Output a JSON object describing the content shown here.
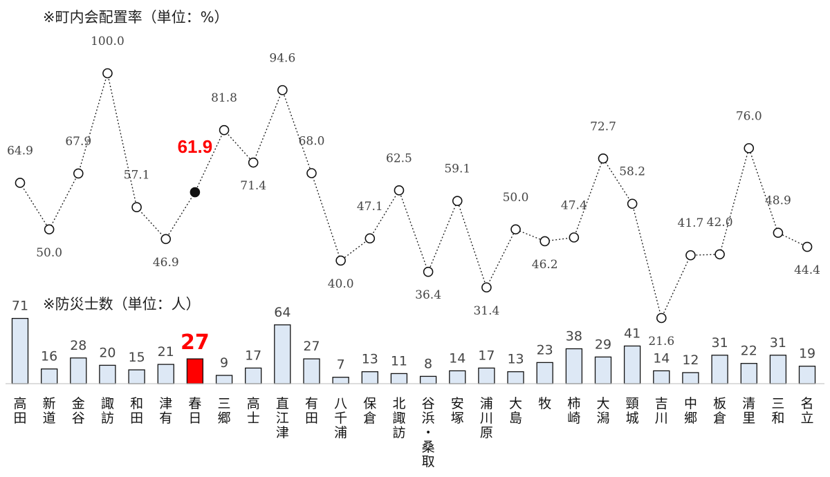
{
  "chart_data": [
    {
      "type": "line",
      "title": "※町内会配置率（単位：%）",
      "categories": [
        [
          "高",
          "田"
        ],
        [
          "新",
          "道"
        ],
        [
          "金",
          "谷"
        ],
        [
          "諏",
          "訪"
        ],
        [
          "和",
          "田"
        ],
        [
          "津",
          "有"
        ],
        [
          "春",
          "日"
        ],
        [
          "三",
          "郷"
        ],
        [
          "高",
          "士"
        ],
        [
          "直",
          "江",
          "津"
        ],
        [
          "有",
          "田"
        ],
        [
          "八",
          "千",
          "浦"
        ],
        [
          "保",
          "倉"
        ],
        [
          "北",
          "諏",
          "訪"
        ],
        [
          "谷",
          "浜",
          "・",
          "桑",
          "取"
        ],
        [
          "安",
          "塚"
        ],
        [
          "浦",
          "川",
          "原"
        ],
        [
          "大",
          "島"
        ],
        [
          "牧"
        ],
        [
          "柿",
          "崎"
        ],
        [
          "大",
          "潟"
        ],
        [
          "頸",
          "城"
        ],
        [
          "吉",
          "川"
        ],
        [
          "中",
          "郷"
        ],
        [
          "板",
          "倉"
        ],
        [
          "清",
          "里"
        ],
        [
          "三",
          "和"
        ],
        [
          "名",
          "立"
        ]
      ],
      "values": [
        64.9,
        50.0,
        67.9,
        100.0,
        57.1,
        46.9,
        61.9,
        81.8,
        71.4,
        94.6,
        68.0,
        40.0,
        47.1,
        62.5,
        36.4,
        59.1,
        31.4,
        50.0,
        46.2,
        47.4,
        72.7,
        58.2,
        21.6,
        41.7,
        42.0,
        76.0,
        48.9,
        44.4
      ],
      "labels": [
        "64.9",
        "50.0",
        "67.9",
        "100.0",
        "57.1",
        "46.9",
        "61.9",
        "81.8",
        "71.4",
        "94.6",
        "68.0",
        "40.0",
        "47.1",
        "62.5",
        "36.4",
        "59.1",
        "31.4",
        "50.0",
        "46.2",
        "47.4",
        "72.7",
        "58.2",
        "21.6",
        "41.7",
        "42.0",
        "76.0",
        "48.9",
        "44.4"
      ],
      "highlight_index": 6,
      "line_style": "dotted",
      "marker": "open-circle"
    },
    {
      "type": "bar",
      "title": "※防災士数（単位：人）",
      "values": [
        71,
        16,
        28,
        20,
        15,
        21,
        27,
        9,
        17,
        64,
        27,
        7,
        13,
        11,
        8,
        14,
        17,
        13,
        23,
        38,
        29,
        41,
        14,
        12,
        31,
        22,
        31,
        19
      ],
      "highlight_index": 6,
      "colors": {
        "bar_fill": "#dde8f5",
        "bar_stroke": "#111111",
        "highlight_fill": "#ff0000"
      }
    }
  ]
}
